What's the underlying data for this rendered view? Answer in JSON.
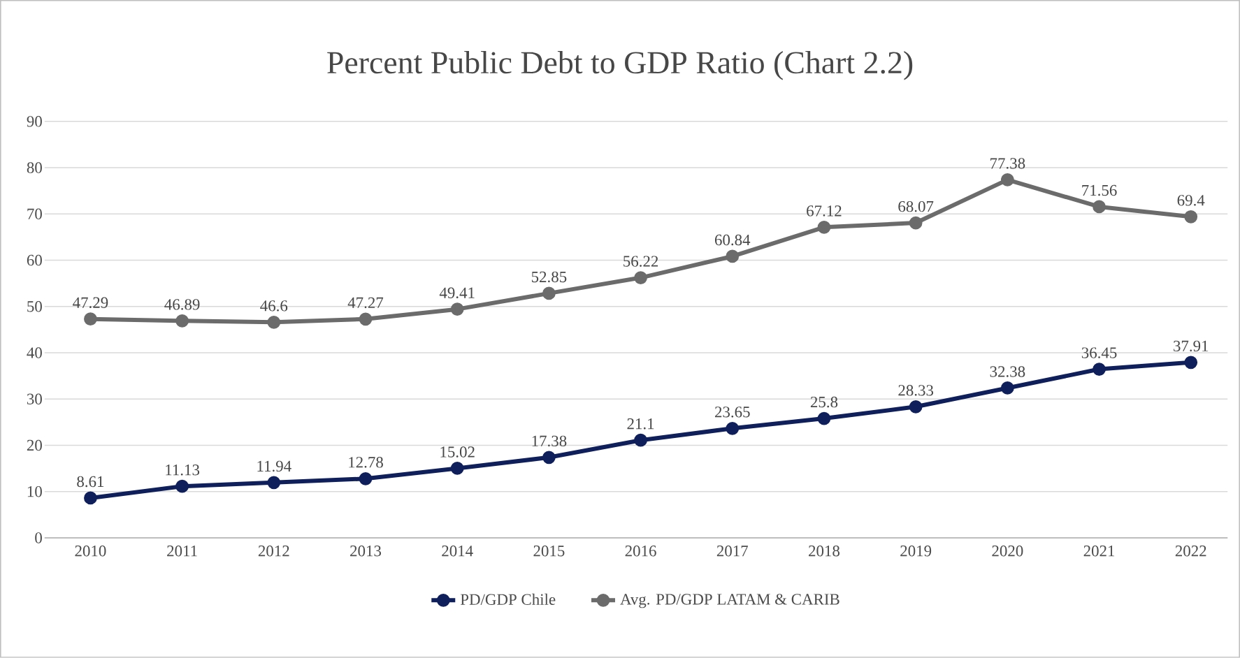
{
  "chart_data": {
    "type": "line",
    "title": "Percent Public Debt to GDP Ratio (Chart 2.2)",
    "categories": [
      "2010",
      "2011",
      "2012",
      "2013",
      "2014",
      "2015",
      "2016",
      "2017",
      "2018",
      "2019",
      "2020",
      "2021",
      "2022"
    ],
    "series": [
      {
        "name": "PD/GDP Chile",
        "color": "#0f1f5c",
        "values": [
          8.61,
          11.13,
          11.94,
          12.78,
          15.02,
          17.38,
          21.1,
          23.65,
          25.8,
          28.33,
          32.38,
          36.45,
          37.91
        ]
      },
      {
        "name": "Avg. PD/GDP LATAM & CARIB",
        "color": "#6b6b6b",
        "values": [
          47.29,
          46.89,
          46.6,
          47.27,
          49.41,
          52.85,
          56.22,
          60.84,
          67.12,
          68.07,
          77.38,
          71.56,
          69.4
        ]
      }
    ],
    "ylim": [
      0,
      90
    ],
    "yticks": [
      0,
      10,
      20,
      30,
      40,
      50,
      60,
      70,
      80,
      90
    ],
    "grid": "y",
    "legend": "bottom",
    "marker": "circle",
    "data_labels": true
  }
}
